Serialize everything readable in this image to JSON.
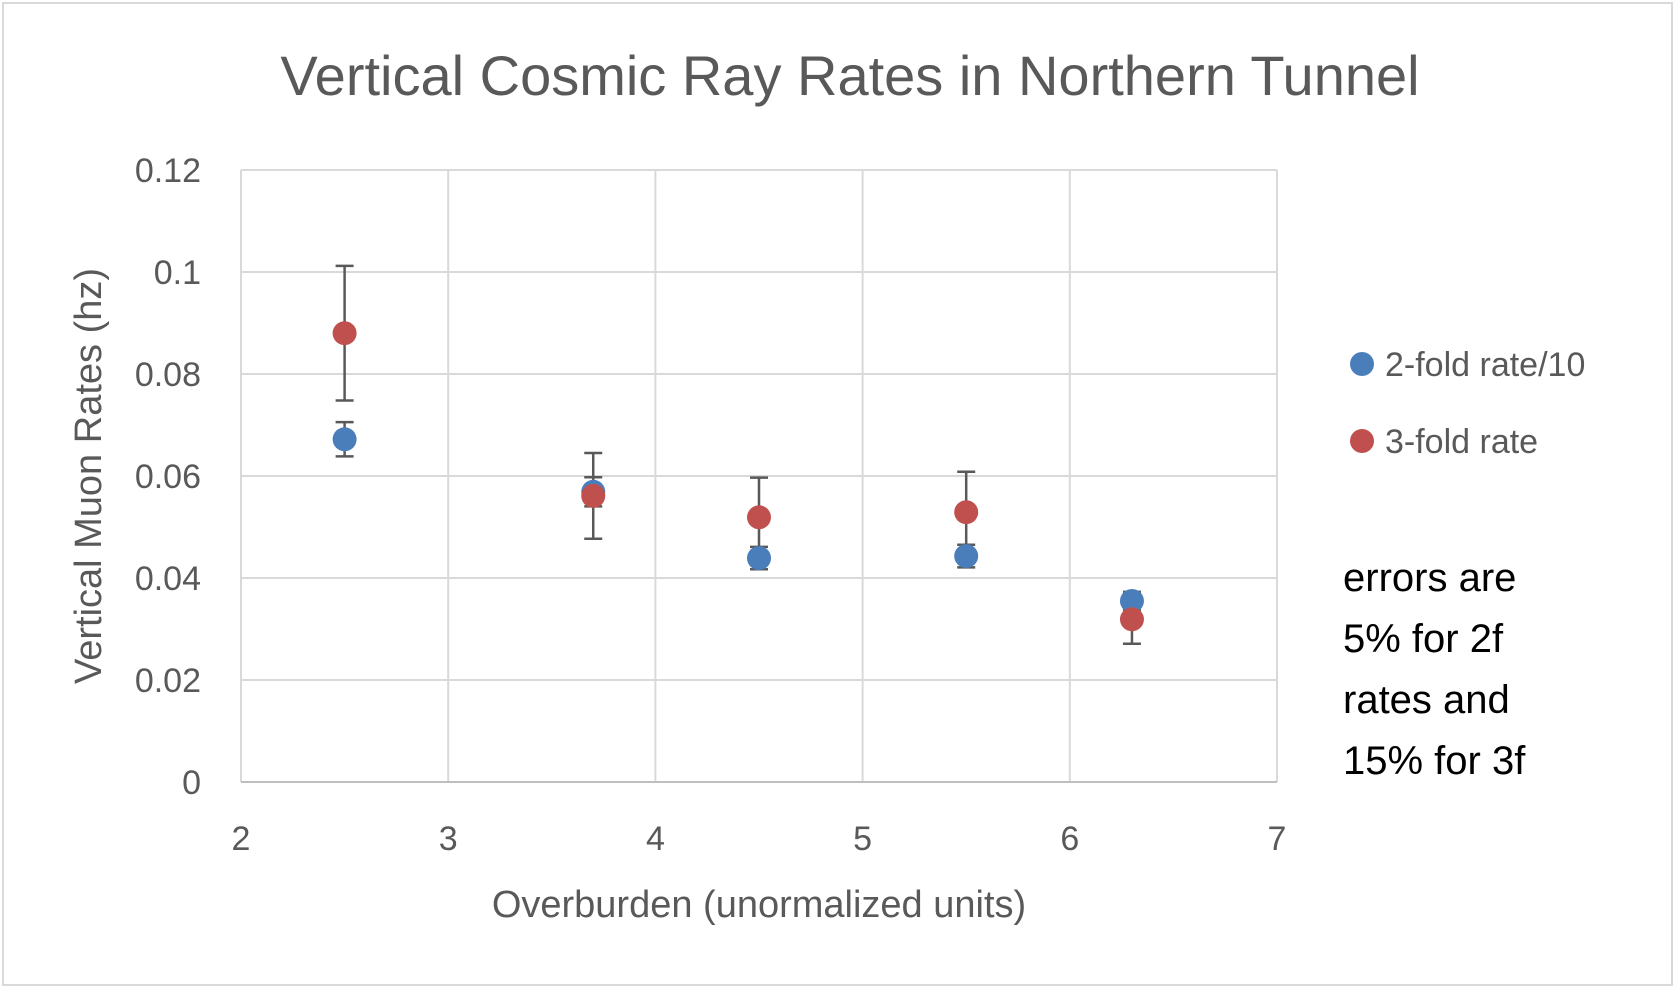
{
  "chart_data": {
    "type": "scatter",
    "title": "Vertical Cosmic Ray Rates  in Northern Tunnel",
    "xlabel": "Overburden (unormalized units)",
    "ylabel": "Vertical Muon Rates (hz)",
    "xlim": [
      2,
      7
    ],
    "ylim": [
      0,
      0.12
    ],
    "xticks": [
      "2",
      "3",
      "4",
      "5",
      "6",
      "7"
    ],
    "yticks": [
      "0",
      "0.02",
      "0.04",
      "0.06",
      "0.08",
      "0.1",
      "0.12"
    ],
    "grid": true,
    "legend_position": "right",
    "series": [
      {
        "name": "2-fold rate/10",
        "color": "#4a7ebb",
        "error_pct": 5,
        "x": [
          2.5,
          3.7,
          4.5,
          5.5,
          6.3
        ],
        "y": [
          0.0672,
          0.0569,
          0.0439,
          0.0443,
          0.0355
        ]
      },
      {
        "name": "3-fold rate",
        "color": "#c0504d",
        "error_pct": 15,
        "x": [
          2.5,
          3.7,
          4.5,
          5.5,
          6.3
        ],
        "y": [
          0.088,
          0.0561,
          0.0519,
          0.0529,
          0.0319
        ]
      }
    ],
    "annotation": [
      "errors are",
      "5% for 2f",
      "rates and",
      "15% for 3f"
    ]
  }
}
